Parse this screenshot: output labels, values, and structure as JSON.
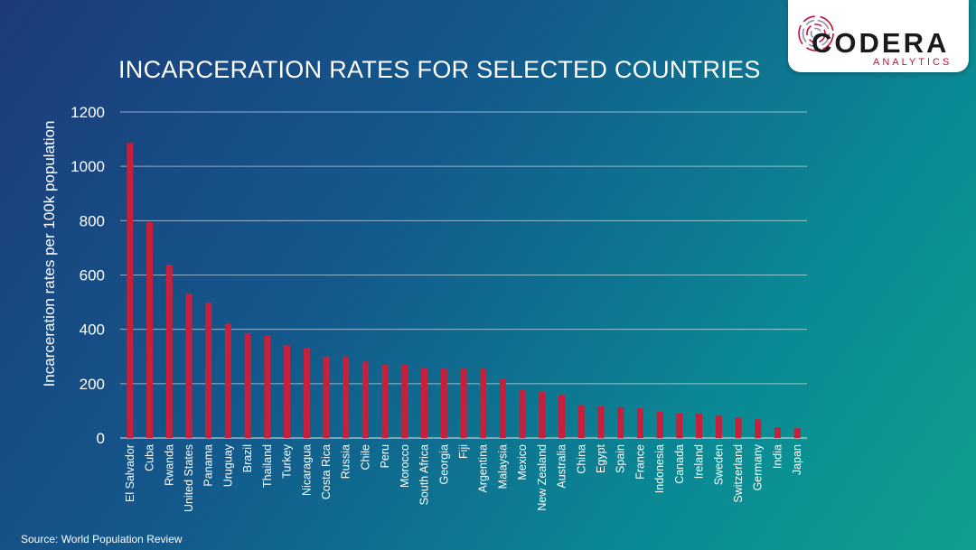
{
  "logo": {
    "name": "CODERA",
    "subtitle": "ANALYTICS"
  },
  "source": "Source: World Population Review",
  "chart_data": {
    "type": "bar",
    "title": "INCARCERATION RATES FOR SELECTED COUNTRIES",
    "xlabel": "",
    "ylabel": "Incarceration rates per 100k population",
    "ylim": [
      0,
      1200
    ],
    "yticks": [
      0,
      200,
      400,
      600,
      800,
      1000,
      1200
    ],
    "grid": true,
    "bar_color": "#c8203a",
    "categories": [
      "El Salvador",
      "Cuba",
      "Rwanda",
      "United States",
      "Panama",
      "Uruguay",
      "Brazil",
      "Thailand",
      "Turkey",
      "Nicaragua",
      "Costa Rica",
      "Russia",
      "Chile",
      "Peru",
      "Morocco",
      "South Africa",
      "Georgia",
      "Fiji",
      "Argentina",
      "Malaysia",
      "Mexico",
      "New Zealand",
      "Australia",
      "China",
      "Egypt",
      "Spain",
      "France",
      "Indonesia",
      "Canada",
      "Ireland",
      "Sweden",
      "Switzerland",
      "Germany",
      "India",
      "Japan"
    ],
    "values": [
      1086,
      794,
      637,
      531,
      499,
      421,
      386,
      379,
      341,
      332,
      300,
      300,
      281,
      270,
      270,
      258,
      255,
      255,
      255,
      218,
      177,
      172,
      160,
      121,
      118,
      114,
      110,
      97,
      90,
      89,
      82,
      75,
      69,
      40,
      36
    ]
  }
}
